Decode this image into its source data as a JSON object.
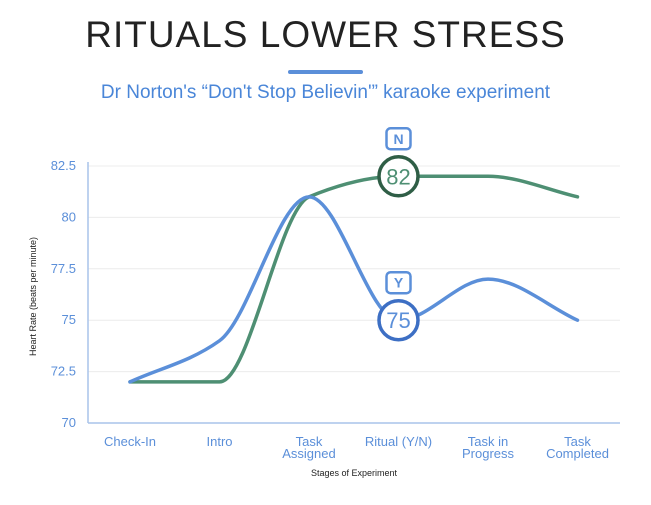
{
  "title": "RITUALS LOWER STRESS",
  "subtitle": "Dr Norton's “Don't Stop Believin'” karaoke experiment",
  "chart_data": {
    "type": "line",
    "title": "RITUALS LOWER STRESS",
    "subtitle": "Dr Norton's “Don't Stop Believin'” karaoke experiment",
    "xlabel": "Stages of Experiment",
    "ylabel": "Heart Rate (beats per minute)",
    "ylim": [
      70,
      82.5
    ],
    "yticks": [
      "70",
      "72.5",
      "75",
      "77.5",
      "80",
      "82.5"
    ],
    "yticks_values": [
      70,
      72.5,
      75,
      77.5,
      80,
      82.5
    ],
    "categories": [
      [
        "Check-In"
      ],
      [
        "Intro"
      ],
      [
        "Task",
        "Assigned"
      ],
      [
        "Ritual (Y/N)"
      ],
      [
        "Task in",
        "Progress"
      ],
      [
        "Task",
        "Completed"
      ]
    ],
    "grid": true,
    "series": [
      {
        "name": "N",
        "color": "#4e8f73",
        "values": [
          72,
          72,
          81,
          82,
          82,
          81
        ]
      },
      {
        "name": "Y",
        "color": "#5b8fd9",
        "values": [
          72,
          74,
          81,
          75,
          77,
          75
        ]
      }
    ],
    "annotations": [
      {
        "series": "N",
        "label": "N",
        "value_text": "82",
        "category_index": 3,
        "value": 82,
        "ring_color": "#2f5e46",
        "badge_color": "#5b8fd9"
      },
      {
        "series": "Y",
        "label": "Y",
        "value_text": "75",
        "category_index": 3,
        "value": 75,
        "ring_color": "#3d6fc4",
        "badge_color": "#5b8fd9"
      }
    ]
  }
}
